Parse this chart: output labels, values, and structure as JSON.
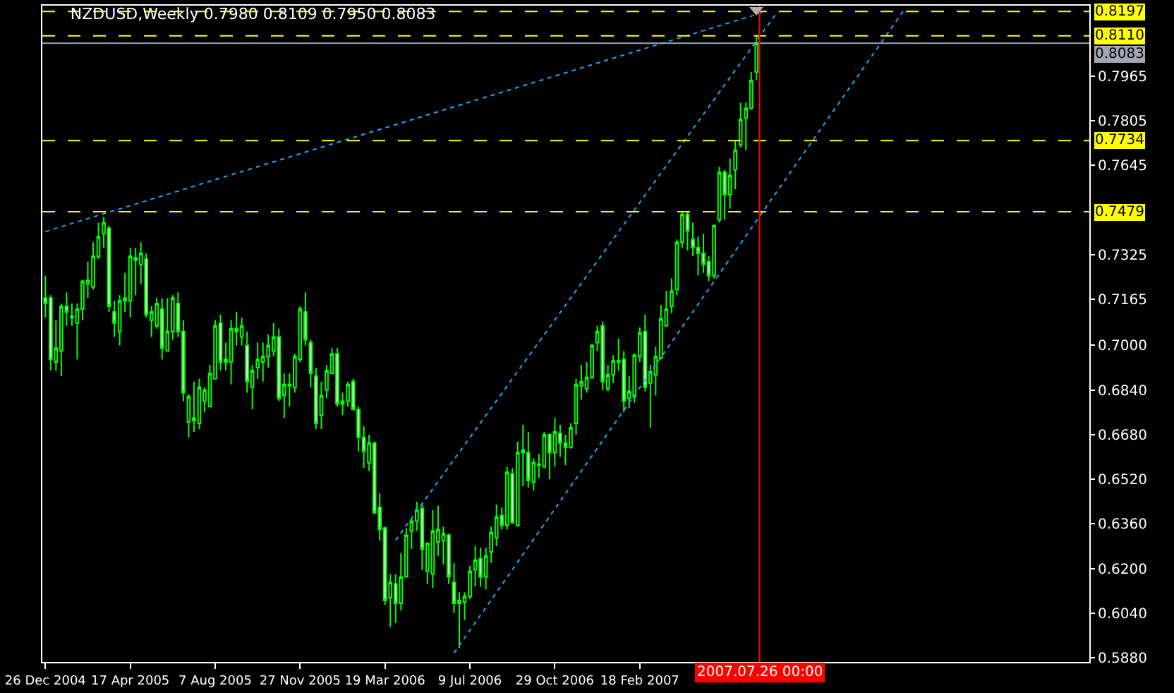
{
  "chart_data": {
    "type": "candlestick",
    "title": "NZDUSD,Weekly 0.7980 0.8109 0.7950 0.8083",
    "color": "#00ff00",
    "x": [
      "2004-12-26",
      "2005-01-02",
      "2005-01-09",
      "2005-01-16",
      "2005-01-23",
      "2005-01-30",
      "2005-02-06",
      "2005-02-13",
      "2005-02-20",
      "2005-02-27",
      "2005-03-06",
      "2005-03-13",
      "2005-03-20",
      "2005-03-27",
      "2005-04-03",
      "2005-04-10",
      "2005-04-17",
      "2005-04-24",
      "2005-05-01",
      "2005-05-08",
      "2005-05-15",
      "2005-05-22",
      "2005-05-29",
      "2005-06-05",
      "2005-06-12",
      "2005-06-19",
      "2005-06-26",
      "2005-07-03",
      "2005-07-10",
      "2005-07-17",
      "2005-07-24",
      "2005-07-31",
      "2005-08-07",
      "2005-08-14",
      "2005-08-21",
      "2005-08-28",
      "2005-09-04",
      "2005-09-11",
      "2005-09-18",
      "2005-09-25",
      "2005-10-02",
      "2005-10-09",
      "2005-10-16",
      "2005-10-23",
      "2005-10-30",
      "2005-11-06",
      "2005-11-13",
      "2005-11-20",
      "2005-11-27",
      "2005-12-04",
      "2005-12-11",
      "2005-12-18",
      "2005-12-25",
      "2006-01-01",
      "2006-01-08",
      "2006-01-15",
      "2006-01-22",
      "2006-01-29",
      "2006-02-05",
      "2006-02-12",
      "2006-02-19",
      "2006-02-26",
      "2006-03-05",
      "2006-03-12",
      "2006-03-19",
      "2006-03-26",
      "2006-04-02",
      "2006-04-09",
      "2006-04-16",
      "2006-04-23",
      "2006-04-30",
      "2006-05-07",
      "2006-05-14",
      "2006-05-21",
      "2006-05-28",
      "2006-06-04",
      "2006-06-11",
      "2006-06-18",
      "2006-06-25",
      "2006-07-02",
      "2006-07-09",
      "2006-07-16",
      "2006-07-23",
      "2006-07-30",
      "2006-08-06",
      "2006-08-13",
      "2006-08-20",
      "2006-08-27",
      "2006-09-03",
      "2006-09-10",
      "2006-09-17",
      "2006-09-24",
      "2006-10-01",
      "2006-10-08",
      "2006-10-15",
      "2006-10-22",
      "2006-10-29",
      "2006-11-05",
      "2006-11-12",
      "2006-11-19",
      "2006-11-26",
      "2006-12-03",
      "2006-12-10",
      "2006-12-17",
      "2006-12-24",
      "2006-12-31",
      "2007-01-07",
      "2007-01-14",
      "2007-01-21",
      "2007-01-28",
      "2007-02-04",
      "2007-02-11",
      "2007-02-18",
      "2007-02-25",
      "2007-03-04",
      "2007-03-11",
      "2007-03-18",
      "2007-03-25",
      "2007-04-01",
      "2007-04-08",
      "2007-04-15",
      "2007-04-22",
      "2007-04-29",
      "2007-05-06",
      "2007-05-13",
      "2007-05-20",
      "2007-05-27",
      "2007-06-03",
      "2007-06-10",
      "2007-06-17",
      "2007-06-24",
      "2007-07-01",
      "2007-07-08",
      "2007-07-15",
      "2007-07-22"
    ],
    "ohlc": [
      [
        0.717,
        0.725,
        0.71,
        0.715
      ],
      [
        0.717,
        0.718,
        0.691,
        0.695
      ],
      [
        0.694,
        0.709,
        0.691,
        0.699
      ],
      [
        0.698,
        0.715,
        0.689,
        0.714
      ],
      [
        0.714,
        0.719,
        0.707,
        0.712
      ],
      [
        0.7105,
        0.715,
        0.707,
        0.71
      ],
      [
        0.708,
        0.715,
        0.695,
        0.713
      ],
      [
        0.713,
        0.7235,
        0.709,
        0.723
      ],
      [
        0.722,
        0.73,
        0.717,
        0.7233
      ],
      [
        0.721,
        0.737,
        0.72,
        0.732
      ],
      [
        0.732,
        0.744,
        0.731,
        0.739
      ],
      [
        0.74,
        0.746,
        0.735,
        0.744
      ],
      [
        0.742,
        0.743,
        0.712,
        0.714
      ],
      [
        0.712,
        0.716,
        0.703,
        0.708
      ],
      [
        0.705,
        0.718,
        0.7,
        0.716
      ],
      [
        0.716,
        0.726,
        0.712,
        0.717
      ],
      [
        0.716,
        0.735,
        0.71,
        0.732
      ],
      [
        0.7315,
        0.735,
        0.718,
        0.7305
      ],
      [
        0.729,
        0.737,
        0.722,
        0.733
      ],
      [
        0.731,
        0.733,
        0.71,
        0.711
      ],
      [
        0.709,
        0.714,
        0.703,
        0.712
      ],
      [
        0.707,
        0.717,
        0.706,
        0.715
      ],
      [
        0.713,
        0.717,
        0.695,
        0.699
      ],
      [
        0.698,
        0.717,
        0.698,
        0.705
      ],
      [
        0.705,
        0.718,
        0.702,
        0.717
      ],
      [
        0.715,
        0.719,
        0.703,
        0.705
      ],
      [
        0.705,
        0.709,
        0.68,
        0.683
      ],
      [
        0.6725,
        0.6825,
        0.667,
        0.6817
      ],
      [
        0.674,
        0.687,
        0.669,
        0.673
      ],
      [
        0.672,
        0.688,
        0.67,
        0.685
      ],
      [
        0.68,
        0.685,
        0.676,
        0.684
      ],
      [
        0.678,
        0.693,
        0.678,
        0.69
      ],
      [
        0.688,
        0.709,
        0.688,
        0.707
      ],
      [
        0.708,
        0.711,
        0.691,
        0.694
      ],
      [
        0.694,
        0.701,
        0.691,
        0.695
      ],
      [
        0.694,
        0.709,
        0.686,
        0.706
      ],
      [
        0.705,
        0.712,
        0.7,
        0.706
      ],
      [
        0.703,
        0.71,
        0.7,
        0.707
      ],
      [
        0.7,
        0.705,
        0.683,
        0.687
      ],
      [
        0.685,
        0.693,
        0.677,
        0.691
      ],
      [
        0.692,
        0.701,
        0.688,
        0.695
      ],
      [
        0.694,
        0.701,
        0.687,
        0.696
      ],
      [
        0.696,
        0.704,
        0.692,
        0.7
      ],
      [
        0.698,
        0.708,
        0.696,
        0.703
      ],
      [
        0.703,
        0.706,
        0.68,
        0.681
      ],
      [
        0.682,
        0.69,
        0.674,
        0.686
      ],
      [
        0.686,
        0.69,
        0.678,
        0.6855
      ],
      [
        0.685,
        0.697,
        0.683,
        0.696
      ],
      [
        0.695,
        0.714,
        0.694,
        0.713
      ],
      [
        0.712,
        0.719,
        0.7,
        0.702
      ],
      [
        0.701,
        0.702,
        0.685,
        0.69
      ],
      [
        0.689,
        0.692,
        0.67,
        0.672
      ],
      [
        0.675,
        0.687,
        0.67,
        0.682
      ],
      [
        0.684,
        0.693,
        0.681,
        0.691
      ],
      [
        0.69,
        0.699,
        0.69,
        0.697
      ],
      [
        0.697,
        0.699,
        0.678,
        0.679
      ],
      [
        0.679,
        0.683,
        0.675,
        0.68
      ],
      [
        0.68,
        0.687,
        0.678,
        0.686
      ],
      [
        0.687,
        0.688,
        0.677,
        0.677
      ],
      [
        0.677,
        0.678,
        0.662,
        0.667
      ],
      [
        0.667,
        0.671,
        0.656,
        0.662
      ],
      [
        0.658,
        0.668,
        0.655,
        0.665
      ],
      [
        0.665,
        0.6655,
        0.6395,
        0.64
      ],
      [
        0.642,
        0.647,
        0.63,
        0.634
      ],
      [
        0.6345,
        0.635,
        0.607,
        0.6085
      ],
      [
        0.6095,
        0.618,
        0.599,
        0.615
      ],
      [
        0.6145,
        0.618,
        0.6005,
        0.6075
      ],
      [
        0.6075,
        0.6255,
        0.605,
        0.617
      ],
      [
        0.617,
        0.6345,
        0.617,
        0.632
      ],
      [
        0.6335,
        0.638,
        0.627,
        0.637
      ],
      [
        0.637,
        0.644,
        0.6335,
        0.641
      ],
      [
        0.6415,
        0.643,
        0.6195,
        0.627
      ],
      [
        0.619,
        0.6295,
        0.6145,
        0.629
      ],
      [
        0.618,
        0.641,
        0.613,
        0.6335
      ],
      [
        0.6295,
        0.6425,
        0.6245,
        0.634
      ],
      [
        0.63,
        0.635,
        0.6215,
        0.6325
      ],
      [
        0.632,
        0.6325,
        0.6145,
        0.617
      ],
      [
        0.615,
        0.622,
        0.604,
        0.6075
      ],
      [
        0.6075,
        0.6115,
        0.5915,
        0.6085
      ],
      [
        0.608,
        0.6115,
        0.6015,
        0.61
      ],
      [
        0.61,
        0.621,
        0.609,
        0.619
      ],
      [
        0.6195,
        0.628,
        0.6135,
        0.623
      ],
      [
        0.6235,
        0.6275,
        0.6135,
        0.617
      ],
      [
        0.617,
        0.6275,
        0.6125,
        0.6245
      ],
      [
        0.626,
        0.635,
        0.622,
        0.633
      ],
      [
        0.631,
        0.643,
        0.628,
        0.6385
      ],
      [
        0.639,
        0.642,
        0.634,
        0.6355
      ],
      [
        0.6355,
        0.6565,
        0.634,
        0.6545
      ],
      [
        0.654,
        0.656,
        0.636,
        0.6365
      ],
      [
        0.6355,
        0.6655,
        0.635,
        0.6615
      ],
      [
        0.6615,
        0.6715,
        0.6495,
        0.6625
      ],
      [
        0.6615,
        0.669,
        0.649,
        0.6515
      ],
      [
        0.651,
        0.6595,
        0.648,
        0.658
      ],
      [
        0.6575,
        0.661,
        0.6525,
        0.657
      ],
      [
        0.6565,
        0.669,
        0.656,
        0.668
      ],
      [
        0.668,
        0.6685,
        0.652,
        0.6615
      ],
      [
        0.6615,
        0.674,
        0.6565,
        0.669
      ],
      [
        0.6685,
        0.6715,
        0.66,
        0.665
      ],
      [
        0.665,
        0.668,
        0.657,
        0.6635
      ],
      [
        0.6635,
        0.672,
        0.663,
        0.6705
      ],
      [
        0.672,
        0.688,
        0.668,
        0.686
      ],
      [
        0.6855,
        0.693,
        0.6805,
        0.687
      ],
      [
        0.6845,
        0.694,
        0.683,
        0.6885
      ],
      [
        0.6885,
        0.7005,
        0.688,
        0.7
      ],
      [
        0.701,
        0.707,
        0.698,
        0.705
      ],
      [
        0.707,
        0.7085,
        0.684,
        0.687
      ],
      [
        0.6845,
        0.693,
        0.6835,
        0.6895
      ],
      [
        0.6895,
        0.6965,
        0.6865,
        0.6945
      ],
      [
        0.6945,
        0.7025,
        0.691,
        0.694
      ],
      [
        0.695,
        0.698,
        0.676,
        0.68
      ],
      [
        0.681,
        0.689,
        0.6775,
        0.6835
      ],
      [
        0.6815,
        0.697,
        0.6795,
        0.6965
      ],
      [
        0.696,
        0.7065,
        0.694,
        0.7045
      ],
      [
        0.705,
        0.711,
        0.6835,
        0.685
      ],
      [
        0.6865,
        0.693,
        0.6705,
        0.6905
      ],
      [
        0.6895,
        0.6995,
        0.682,
        0.696
      ],
      [
        0.6955,
        0.7145,
        0.695,
        0.7095
      ],
      [
        0.707,
        0.7195,
        0.707,
        0.713
      ],
      [
        0.714,
        0.724,
        0.7115,
        0.7195
      ],
      [
        0.72,
        0.738,
        0.718,
        0.737
      ],
      [
        0.737,
        0.748,
        0.735,
        0.747
      ],
      [
        0.747,
        0.748,
        0.734,
        0.741
      ],
      [
        0.738,
        0.744,
        0.732,
        0.735
      ],
      [
        0.735,
        0.739,
        0.725,
        0.733
      ],
      [
        0.733,
        0.74,
        0.726,
        0.729
      ],
      [
        0.73,
        0.732,
        0.723,
        0.725
      ],
      [
        0.725,
        0.743,
        0.724,
        0.743
      ],
      [
        0.745,
        0.764,
        0.744,
        0.762
      ],
      [
        0.762,
        0.763,
        0.745,
        0.754
      ],
      [
        0.754,
        0.767,
        0.749,
        0.761
      ],
      [
        0.763,
        0.7735,
        0.756,
        0.77
      ],
      [
        0.772,
        0.787,
        0.771,
        0.781
      ],
      [
        0.7815,
        0.787,
        0.77,
        0.785
      ],
      [
        0.785,
        0.798,
        0.7845,
        0.795
      ],
      [
        0.798,
        0.8109,
        0.795,
        0.8083
      ]
    ],
    "series": [
      {
        "type": "line",
        "color": "#1ea8ff",
        "line_style": "dotted",
        "x": [
          "2004-12-26",
          "2007-08-05"
        ],
        "values": [
          0.7408,
          0.8198
        ]
      },
      {
        "type": "line",
        "color": "#1ea8ff",
        "line_style": "dotted",
        "x": [
          "2006-04-02",
          "2007-08-19"
        ],
        "values": [
          0.6301,
          0.8197
        ]
      },
      {
        "type": "line",
        "color": "#1ea8ff",
        "line_style": "dotted",
        "x": [
          "2006-06-18",
          "2008-02-03"
        ],
        "values": [
          0.5897,
          0.8208
        ]
      }
    ],
    "xlim": [
      "2004-12-22",
      "2008-10-03"
    ],
    "xticks": [
      {
        "value": "2004-12-26",
        "label": "26 Dec 2004"
      },
      {
        "value": "2005-04-17",
        "label": "17 Apr 2005"
      },
      {
        "value": "2005-08-07",
        "label": "7 Aug 2005"
      },
      {
        "value": "2005-11-27",
        "label": "27 Nov 2005"
      },
      {
        "value": "2006-03-19",
        "label": "19 Mar 2006"
      },
      {
        "value": "2006-07-09",
        "label": "9 Jul 2006"
      },
      {
        "value": "2006-10-29",
        "label": "29 Oct 2006"
      },
      {
        "value": "2007-02-18",
        "label": "18 Feb 2007"
      },
      {
        "value": "2007-06-10",
        "label": null
      }
    ],
    "ylim": [
      0.5865,
      0.8218
    ],
    "yticks": [
      {
        "value": 0.588,
        "label": "0.5880"
      },
      {
        "value": 0.604,
        "label": "0.6040"
      },
      {
        "value": 0.62,
        "label": "0.6200"
      },
      {
        "value": 0.636,
        "label": "0.6360"
      },
      {
        "value": 0.652,
        "label": "0.6520"
      },
      {
        "value": 0.668,
        "label": "0.6680"
      },
      {
        "value": 0.684,
        "label": "0.6840"
      },
      {
        "value": 0.7,
        "label": "0.7000"
      },
      0.7165,
      0.7325,
      0.7645,
      0.7805,
      0.7965
    ],
    "ref_lines": [
      {
        "axis": "y",
        "value": 0.8197,
        "label": "0.8197",
        "color": "#ffff00",
        "line_style": "dashed"
      },
      {
        "axis": "y",
        "value": 0.811,
        "label": "0.8110",
        "color": "#ffff00",
        "line_style": "dashed"
      },
      {
        "axis": "y",
        "value": 0.8083,
        "label": "0.8083",
        "color": "#a0a8b4",
        "line_style": "solid"
      },
      {
        "axis": "y",
        "value": 0.7734,
        "label": "0.7734",
        "color": "#ffff00",
        "line_style": "dashed"
      },
      {
        "axis": "y",
        "value": 0.7479,
        "label": "0.7479",
        "color": "#ffff00",
        "line_style": "dashed"
      },
      {
        "axis": "x",
        "value": "2007-07-26",
        "label": "2007.07.26 00:00",
        "color": "#ff0000",
        "line_style": "solid"
      }
    ]
  }
}
